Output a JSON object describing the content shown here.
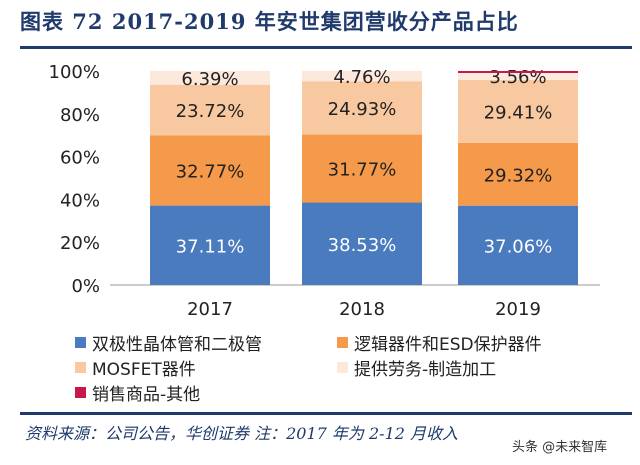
{
  "title": "图表 72   2017-2019 年安世集团营收分产品占比",
  "footer": "资料来源：公司公告，华创证券   注：2017 年为 2-12 月收入",
  "watermark": "头条 @未来智库",
  "chart_data": {
    "type": "bar",
    "stacked": true,
    "categories": [
      "2017",
      "2018",
      "2019"
    ],
    "ylim": [
      0,
      100
    ],
    "yticks": [
      "0%",
      "20%",
      "40%",
      "60%",
      "80%",
      "100%"
    ],
    "legend_position": "bottom",
    "series": [
      {
        "name": "双极性晶体管和二极管",
        "color": "#4a7bbf",
        "values": [
          37.11,
          38.53,
          37.06
        ],
        "labels": [
          "37.11%",
          "38.53%",
          "37.06%"
        ]
      },
      {
        "name": "逻辑器件和ESD保护器件",
        "color": "#f59a4a",
        "values": [
          32.77,
          31.77,
          29.32
        ],
        "labels": [
          "32.77%",
          "31.77%",
          "29.32%"
        ]
      },
      {
        "name": "MOSFET器件",
        "color": "#f8c9a0",
        "values": [
          23.72,
          24.93,
          29.41
        ],
        "labels": [
          "23.72%",
          "24.93%",
          "29.41%"
        ]
      },
      {
        "name": "提供劳务-制造加工",
        "color": "#fde8dc",
        "values": [
          6.39,
          4.76,
          3.56
        ],
        "labels": [
          "6.39%",
          "4.76%",
          "3.56%"
        ]
      },
      {
        "name": "销售商品-其他",
        "color": "#c8174a",
        "values": [
          0,
          0,
          0.65
        ],
        "labels": [
          "",
          "",
          ""
        ]
      }
    ]
  }
}
